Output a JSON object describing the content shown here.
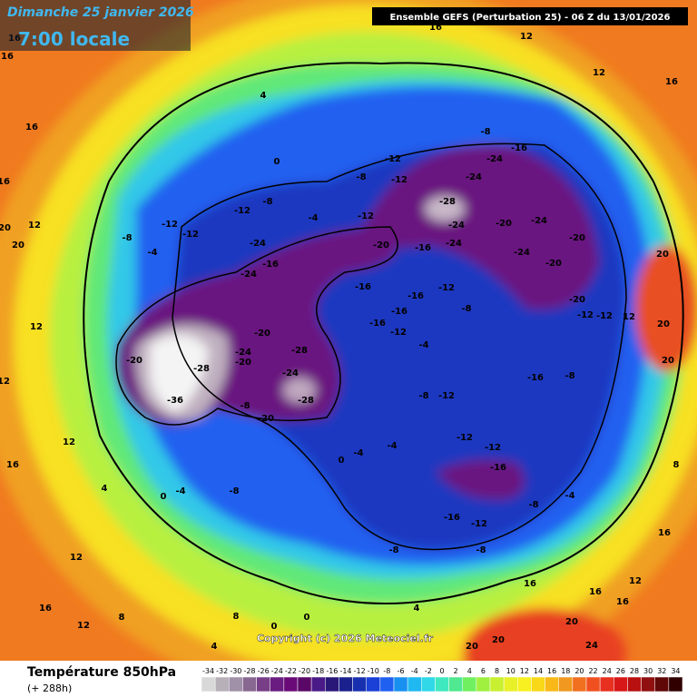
{
  "header": {
    "date": "Dimanche 25 janvier 2026",
    "time": "7:00 locale",
    "model": "Ensemble GEFS  (Perturbation 25)  -  06 Z du 13/01/2026"
  },
  "map": {
    "contour_labels": [
      16,
      16,
      16,
      4,
      0,
      16,
      12,
      12,
      16,
      -8,
      -16,
      -24,
      -12,
      -8,
      -12,
      -24,
      -28,
      -24,
      -20,
      -24,
      -20,
      -24,
      -24,
      -16,
      -20,
      -4,
      -12,
      -12,
      -8,
      -12,
      -12,
      -8,
      -4,
      -24,
      -24,
      -16,
      -16,
      -16,
      -12,
      -8,
      -16,
      -16,
      -12,
      -4,
      -20,
      -24,
      -20,
      -28,
      -20,
      -28,
      -24,
      -36,
      -8,
      -20,
      -28,
      -8,
      -12,
      -16,
      -8,
      -12,
      -12,
      -16,
      -4,
      -4,
      0,
      -8,
      -4,
      0,
      -16,
      -12,
      -8,
      -4,
      -8,
      -8,
      16,
      16,
      16,
      12,
      16,
      8,
      20,
      20,
      20,
      12,
      -12,
      -20,
      -12,
      -20,
      12,
      16,
      4,
      12,
      12,
      16,
      8,
      8,
      0,
      0,
      4,
      20,
      20,
      24,
      20,
      4,
      12,
      12,
      20,
      20,
      12,
      16
    ],
    "copyright": "Copyright (c) 2026 Meteociel.fr"
  },
  "footer": {
    "title": "Température 850hPa",
    "lead": "(+ 288h)",
    "scale": [
      -34,
      -32,
      -30,
      -28,
      -26,
      -24,
      -22,
      -20,
      -18,
      -16,
      -14,
      -12,
      -10,
      -8,
      -6,
      -4,
      -2,
      0,
      2,
      4,
      6,
      8,
      10,
      12,
      14,
      16,
      18,
      20,
      22,
      24,
      26,
      28,
      30,
      32,
      34
    ],
    "colors": [
      "#d8d8d8",
      "#b8b0b8",
      "#a090a8",
      "#886890",
      "#783e88",
      "#6a1c80",
      "#6a0a78",
      "#5a0868",
      "#4a1a88",
      "#2a1878",
      "#1a208c",
      "#1830b0",
      "#1a40d8",
      "#2060f0",
      "#1890f0",
      "#20b8f0",
      "#30d8e8",
      "#40e8c0",
      "#50e890",
      "#70f060",
      "#a0f040",
      "#c8f030",
      "#e8f028",
      "#f8f020",
      "#f8d818",
      "#f8b818",
      "#f09820",
      "#f07020",
      "#f05020",
      "#e83020",
      "#d81818",
      "#b81010",
      "#901010",
      "#600808",
      "#300000"
    ]
  }
}
